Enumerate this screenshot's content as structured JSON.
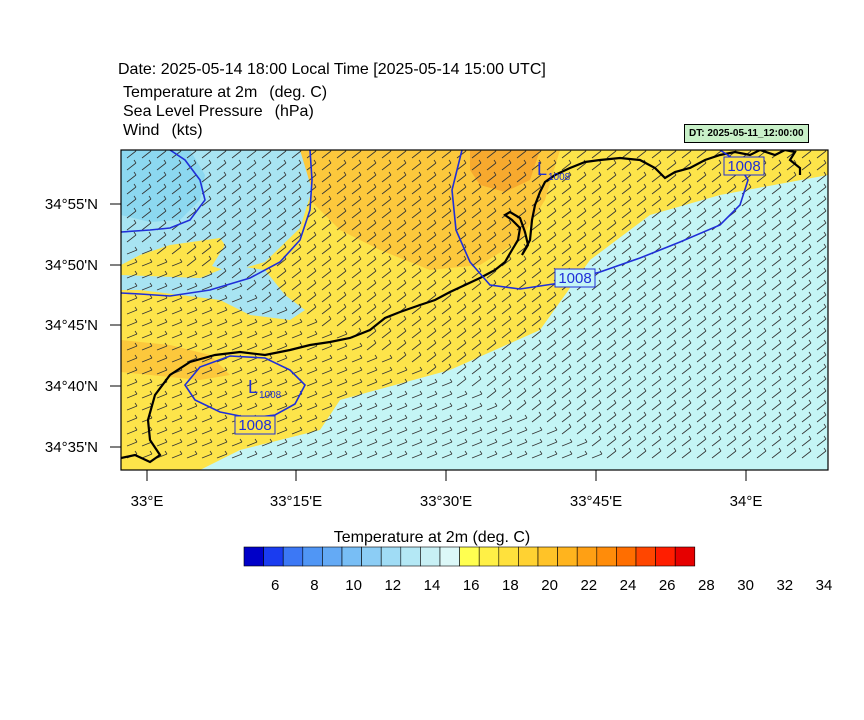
{
  "header": {
    "date_line": "Date: 2025-05-14  18:00 Local Time [2025-05-14  15:00 UTC]",
    "fields": [
      {
        "name": "Temperature at 2m",
        "unit": "(deg. C)"
      },
      {
        "name": "Sea Level Pressure",
        "unit": "(hPa)"
      },
      {
        "name": "Wind",
        "unit": "(kts)"
      }
    ],
    "dt_label": "DT: 2025-05-11_12:00:00"
  },
  "map": {
    "lat_ticks": [
      "34°55'N",
      "34°50'N",
      "34°45'N",
      "34°40'N",
      "34°35'N"
    ],
    "lon_ticks": [
      "33°E",
      "33°15'E",
      "33°30'E",
      "33°45'E",
      "34°E"
    ],
    "pressure_labels": [
      "1008",
      "1008",
      "1008"
    ],
    "low_markers": [
      {
        "symbol": "L",
        "value": "1008"
      },
      {
        "symbol": "L",
        "value": "1008"
      }
    ],
    "colors": {
      "sea": "#c4f5f5",
      "cool": "#a8e4f2",
      "cooler": "#8cd8f0",
      "land_warm": "#fdf044",
      "land": "#fde44a",
      "land_hot": "#fcc83c",
      "land_hotter": "#f7a92e",
      "isobar": "#1f2fd8"
    }
  },
  "colorbar": {
    "title": "Temperature at 2m  (deg. C)",
    "labels": [
      "6",
      "8",
      "10",
      "12",
      "14",
      "16",
      "18",
      "20",
      "22",
      "24",
      "26",
      "28",
      "30",
      "32",
      "34"
    ],
    "colors": [
      "#0000c8",
      "#1a3cf0",
      "#3c78f5",
      "#5096f5",
      "#64aaf5",
      "#78bef5",
      "#8ccdf5",
      "#a0dcf5",
      "#b4e8f5",
      "#c8f0f5",
      "#dcf8f8",
      "#ffff50",
      "#fff046",
      "#ffe13c",
      "#ffd232",
      "#ffc328",
      "#ffb41e",
      "#ffa014",
      "#ff8c0a",
      "#ff6e00",
      "#ff4600",
      "#ff1e00",
      "#e60000"
    ]
  }
}
